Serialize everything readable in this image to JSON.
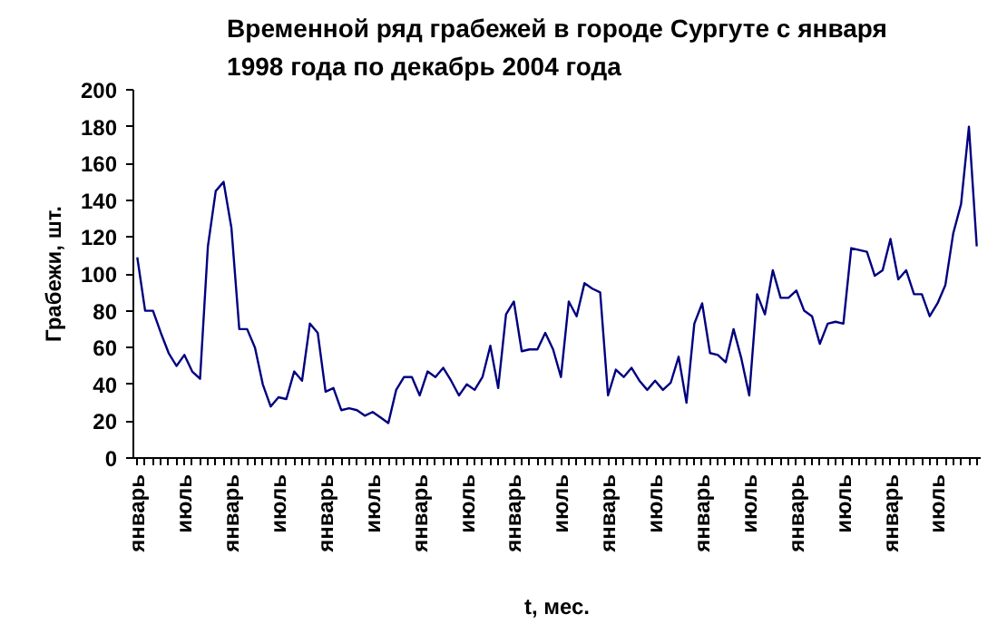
{
  "chart_data": {
    "type": "line",
    "title": "Временной ряд грабежей в городе Сургуте с января\n1998 года по декабрь 2004 года",
    "xlabel": "t, мес.",
    "ylabel": "Грабежи, шт.",
    "categories": [
      "январь",
      null,
      null,
      null,
      null,
      null,
      "июль",
      null,
      null,
      null,
      null,
      null,
      "январь",
      null,
      null,
      null,
      null,
      null,
      "июль",
      null,
      null,
      null,
      null,
      null,
      "январь",
      null,
      null,
      null,
      null,
      null,
      "июль",
      null,
      null,
      null,
      null,
      null,
      "январь",
      null,
      null,
      null,
      null,
      null,
      "июль",
      null,
      null,
      null,
      null,
      null,
      "январь",
      null,
      null,
      null,
      null,
      null,
      "июль",
      null,
      null,
      null,
      null,
      null,
      "январь",
      null,
      null,
      null,
      null,
      null,
      "июль",
      null,
      null,
      null,
      null,
      null,
      "январь",
      null,
      null,
      null,
      null,
      null,
      "июль",
      null,
      null,
      null,
      null,
      null,
      "январь",
      null,
      null,
      null,
      null,
      null,
      "июль",
      null,
      null,
      null,
      null,
      null,
      "январь",
      null,
      null,
      null,
      null,
      null,
      "июль",
      null,
      null,
      null,
      null,
      null
    ],
    "series": [
      {
        "color": "#000080",
        "values": [
          109,
          80,
          80,
          68,
          57,
          50,
          56,
          47,
          43,
          115,
          145,
          150,
          125,
          70,
          70,
          60,
          40,
          28,
          33,
          32,
          47,
          42,
          73,
          68,
          36,
          38,
          26,
          27,
          26,
          23,
          25,
          22,
          19,
          37,
          44,
          44,
          34,
          47,
          44,
          49,
          42,
          34,
          40,
          37,
          44,
          61,
          38,
          78,
          85,
          58,
          59,
          59,
          68,
          59,
          44,
          85,
          77,
          95,
          92,
          90,
          34,
          48,
          44,
          49,
          42,
          37,
          42,
          37,
          41,
          55,
          30,
          73,
          84,
          57,
          56,
          52,
          70,
          54,
          34,
          89,
          78,
          102,
          87,
          87,
          91,
          80,
          77,
          62,
          73,
          74,
          73,
          114,
          113,
          112,
          99,
          102,
          119,
          97,
          102,
          89,
          89,
          77,
          84,
          94,
          122,
          138,
          180,
          115
        ]
      }
    ],
    "ylim": [
      0,
      200
    ],
    "yticks": [
      0,
      20,
      40,
      60,
      80,
      100,
      120,
      140,
      160,
      180,
      200
    ],
    "grid": false
  }
}
